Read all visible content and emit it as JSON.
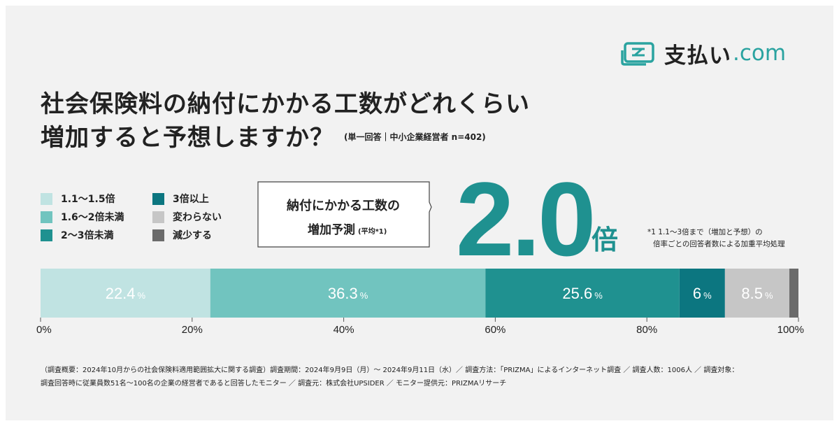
{
  "brand": {
    "name": "支払い",
    "domain": ".com"
  },
  "title": {
    "line1": "社会保険料の納付にかかる工数がどれくらい",
    "line2": "増加すると予想しますか？",
    "note": "(単一回答｜中小企業経営者 n=402)"
  },
  "callout": {
    "line1": "納付にかかる工数の",
    "line2": "増加予測",
    "line2_note": "(平均*1)"
  },
  "highlight": {
    "value": "2.0",
    "unit": "倍"
  },
  "footnote": {
    "line1": "*1 1.1〜3倍まで（増加と予想）の",
    "line2": "倍率ごとの回答者数による加重平均処理"
  },
  "colors": {
    "accent": "#1f9190",
    "background": "#f2f2f2"
  },
  "chart_data": {
    "type": "bar",
    "orientation": "horizontal-stacked",
    "unit": "%",
    "series": [
      {
        "name": "1.1〜1.5倍",
        "value": 22.4,
        "label": "22.4",
        "color": "#c0e3e2"
      },
      {
        "name": "1.6〜2倍未満",
        "value": 36.3,
        "label": "36.3",
        "color": "#71c4bf"
      },
      {
        "name": "2〜3倍未満",
        "value": 25.6,
        "label": "25.6",
        "color": "#1f9190"
      },
      {
        "name": "3倍以上",
        "value": 6,
        "label": "6",
        "color": "#0c7680"
      },
      {
        "name": "変わらない",
        "value": 8.5,
        "label": "8.5",
        "color": "#c6c6c6"
      },
      {
        "name": "減少する",
        "value": 1.2,
        "label": "",
        "color": "#6b6b6b"
      }
    ],
    "xlim": [
      0,
      100
    ],
    "ticks": [
      "0%",
      "20%",
      "40%",
      "60%",
      "80%",
      "100%"
    ],
    "legend_placement": "top-left"
  },
  "survey": {
    "line1": "（調査概要：2024年10月からの社会保険料適用範囲拡大に関する調査）調査期間：2024年9月9日（月）〜 2024年9月11日（水）／ 調査方法：「PRIZMA」によるインターネット調査 ／ 調査人数：1006人 ／ 調査対象：",
    "line2": "調査回答時に従業員数51名〜100名の企業の経営者であると回答したモニター ／ 調査元：株式会社UPSIDER ／ モニター提供元：PRIZMAリサーチ"
  }
}
